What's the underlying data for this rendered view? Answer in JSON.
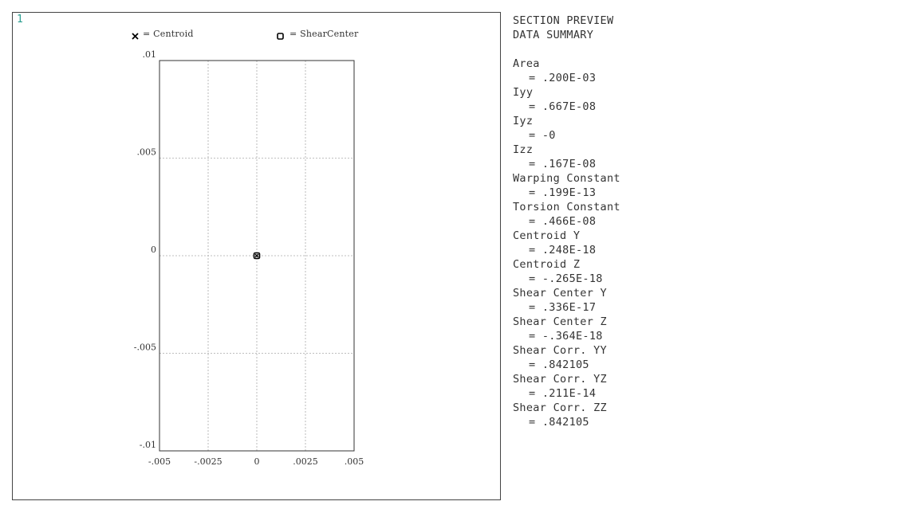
{
  "viewport": {
    "window_number": "1",
    "legend": {
      "centroid_symbol": "x",
      "centroid_label": "= Centroid",
      "shear_center_symbol": "o",
      "shear_center_label": "= ShearCenter"
    }
  },
  "chart_data": {
    "type": "scatter",
    "title": "",
    "xlabel": "",
    "ylabel": "",
    "xlim": [
      -0.005,
      0.005
    ],
    "ylim": [
      -0.01,
      0.01
    ],
    "x_ticks": [
      {
        "value": -0.005,
        "label": "-.005"
      },
      {
        "value": -0.0025,
        "label": "-.0025"
      },
      {
        "value": 0,
        "label": "0"
      },
      {
        "value": 0.0025,
        "label": ".0025"
      },
      {
        "value": 0.005,
        "label": ".005"
      }
    ],
    "y_ticks": [
      {
        "value": 0.01,
        "label": ".01"
      },
      {
        "value": 0.005,
        "label": ".005"
      },
      {
        "value": 0,
        "label": "0"
      },
      {
        "value": -0.005,
        "label": "-.005"
      },
      {
        "value": -0.01,
        "label": "-.01"
      }
    ],
    "grid": true,
    "points": [
      {
        "name": "Centroid",
        "x": 0,
        "y": 0
      },
      {
        "name": "ShearCenter",
        "x": 0,
        "y": 0
      }
    ]
  },
  "summary": {
    "title_line1": "SECTION PREVIEW",
    "title_line2": "DATA SUMMARY",
    "items": [
      {
        "label": "Area",
        "value": "= .200E-03"
      },
      {
        "label": "Iyy",
        "value": "= .667E-08"
      },
      {
        "label": "Iyz",
        "value": "= -0"
      },
      {
        "label": "Izz",
        "value": "= .167E-08"
      },
      {
        "label": "Warping Constant",
        "value": "= .199E-13"
      },
      {
        "label": "Torsion Constant",
        "value": "= .466E-08"
      },
      {
        "label": "Centroid Y",
        "value": "= .248E-18"
      },
      {
        "label": "Centroid Z",
        "value": "= -.265E-18"
      },
      {
        "label": "Shear Center Y",
        "value": "= .336E-17"
      },
      {
        "label": "Shear Center Z",
        "value": "= -.364E-18"
      },
      {
        "label": "Shear Corr. YY",
        "value": "= .842105"
      },
      {
        "label": "Shear Corr. YZ",
        "value": "= .211E-14"
      },
      {
        "label": "Shear Corr. ZZ",
        "value": "= .842105"
      }
    ]
  }
}
